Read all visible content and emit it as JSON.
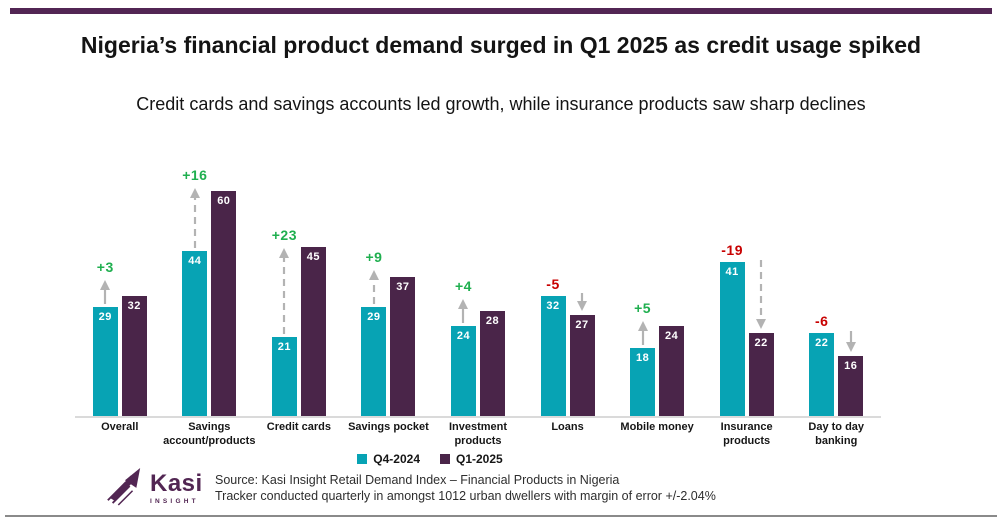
{
  "page": {
    "title": "Nigeria’s financial product demand surged in Q1 2025 as credit usage spiked",
    "subtitle": "Credit cards and savings accounts led growth, while insurance products saw sharp declines"
  },
  "chart_data": {
    "type": "bar",
    "categories": [
      "Overall",
      "Savings account/products",
      "Credit cards",
      "Savings pocket",
      "Investment products",
      "Loans",
      "Mobile money",
      "Insurance products",
      "Day to day banking"
    ],
    "series": [
      {
        "name": "Q4-2024",
        "color": "#07a3b4",
        "values": [
          29,
          44,
          21,
          29,
          24,
          32,
          18,
          41,
          22
        ]
      },
      {
        "name": "Q1-2025",
        "color": "#4a2549",
        "values": [
          32,
          60,
          45,
          37,
          28,
          27,
          24,
          22,
          16
        ]
      }
    ],
    "changes": [
      {
        "label": "+3",
        "direction": "up"
      },
      {
        "label": "+16",
        "direction": "up"
      },
      {
        "label": "+23",
        "direction": "up"
      },
      {
        "label": "+9",
        "direction": "up"
      },
      {
        "label": "+4",
        "direction": "up"
      },
      {
        "label": "-5",
        "direction": "down"
      },
      {
        "label": "+5",
        "direction": "up"
      },
      {
        "label": "-19",
        "direction": "down"
      },
      {
        "label": "-6",
        "direction": "down"
      }
    ],
    "title": "Nigeria’s financial product demand surged in Q1 2025 as credit usage spiked",
    "xlabel": "",
    "ylabel": "",
    "ylim": [
      0,
      65
    ],
    "grid": false,
    "legend_position": "bottom-center",
    "colors": {
      "positive_change": "#1faf4f",
      "negative_change": "#c80000",
      "arrow": "#b3b3b3",
      "axis_line": "#dadada",
      "bar_value_text": "#ffffff"
    }
  },
  "footer": {
    "logo": {
      "brand": "Kasi",
      "sub": "INSIGHT",
      "icon": "kasi-arrow-logo-icon",
      "color": "#522653"
    },
    "source_line1": "Source: Kasi Insight Retail Demand Index – Financial Products in Nigeria",
    "source_line2": "Tracker conducted quarterly in  amongst 1012 urban dwellers with margin of error +/-2.04%"
  },
  "theme": {
    "top_bar_color": "#522554",
    "bottom_rule_color": "#8a8a8a"
  }
}
